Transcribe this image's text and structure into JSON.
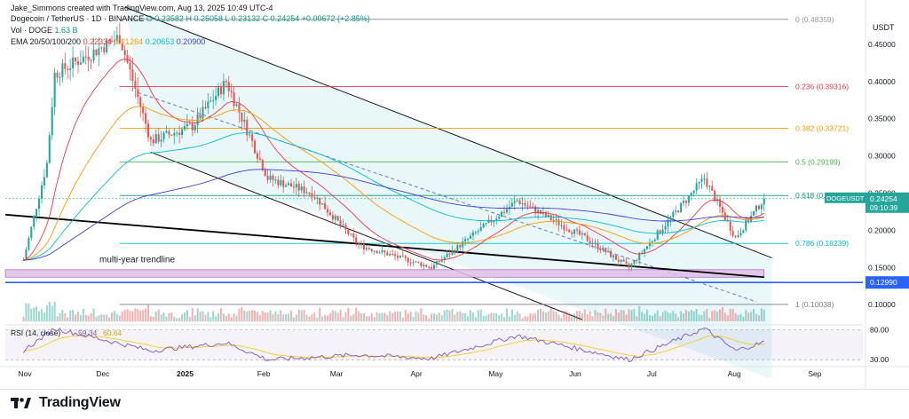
{
  "attribution": "Jake_Simmons created with TradingView.com, Aug 13, 2025 10:49 UTC-4",
  "legend": {
    "symbol": "Dogecoin / TetherUS · 1D · BINANCE",
    "ohlc": "O 0.23582  H 0.25058  L 0.23132  C 0.24254  +0.00672 (+2.85%)",
    "vol_label": "Vol · DOGE",
    "vol_value": "1.63 B",
    "ema_label": "EMA 20/50/100/200",
    "ema_values": [
      "0.22334",
      "0.21264",
      "0.20653",
      "0.20900"
    ]
  },
  "colors": {
    "up": "#26a69a",
    "down": "#ef5350",
    "ema20": "#f23645",
    "ema50": "#ff9800",
    "ema100": "#00bcd4",
    "ema200": "#3f3fd6",
    "channel_fill": "#e3f5f8",
    "support_zone": "#e1bee7",
    "support_line": "#2962ff",
    "rsi_line": "#7e57c2",
    "rsi_ma": "#f0d020"
  },
  "chart_data": {
    "type": "candlestick",
    "pair": "DOGE/USDT",
    "yaxis_unit": "USDT",
    "ylim": [
      0.08,
      0.5
    ],
    "yticks": [
      "0.45000",
      "0.40000",
      "0.35000",
      "0.30000",
      "0.25000",
      "0.20000",
      "0.15000",
      "0.10000"
    ],
    "xticks": [
      "Nov",
      "Dec",
      "2025",
      "Feb",
      "Mar",
      "Apr",
      "May",
      "Jun",
      "Jul",
      "Aug",
      "Sep"
    ],
    "current_price": {
      "symbol": "DOGEUSDT",
      "value": "0.24254",
      "countdown": "09:10:39"
    },
    "support_level": {
      "value": 0.1299,
      "label": "0.12990"
    },
    "fib_levels": [
      {
        "level": "0",
        "value": 0.48359,
        "label": "0 (0.48359)",
        "color": "#9598a1"
      },
      {
        "level": "0.236",
        "value": 0.39316,
        "label": "0.236 (0.39316)",
        "color": "#f23645"
      },
      {
        "level": "0.382",
        "value": 0.33721,
        "label": "0.382 (0.33721)",
        "color": "#ff9800"
      },
      {
        "level": "0.5",
        "value": 0.29199,
        "label": "0.5 (0.29199)",
        "color": "#4caf50"
      },
      {
        "level": "0.618",
        "value": 0.24677,
        "label": "0.618 (0.",
        "color": "#089981"
      },
      {
        "level": "0.786",
        "value": 0.18239,
        "label": "0.786 (0.18239)",
        "color": "#00bcd4"
      },
      {
        "level": "1",
        "value": 0.10038,
        "label": "1 (0.10038)",
        "color": "#787b86"
      }
    ],
    "annotations": [
      "multi-year trendline"
    ],
    "key_closes": [
      {
        "date": "2024-11-01",
        "price": 0.16
      },
      {
        "date": "2024-11-10",
        "price": 0.29
      },
      {
        "date": "2024-11-13",
        "price": 0.41
      },
      {
        "date": "2024-12-08",
        "price": 0.46
      },
      {
        "date": "2024-12-20",
        "price": 0.32
      },
      {
        "date": "2025-01-05",
        "price": 0.34
      },
      {
        "date": "2025-01-18",
        "price": 0.4
      },
      {
        "date": "2025-02-03",
        "price": 0.27
      },
      {
        "date": "2025-02-20",
        "price": 0.25
      },
      {
        "date": "2025-03-10",
        "price": 0.18
      },
      {
        "date": "2025-04-07",
        "price": 0.15
      },
      {
        "date": "2025-05-10",
        "price": 0.24
      },
      {
        "date": "2025-06-05",
        "price": 0.19
      },
      {
        "date": "2025-06-22",
        "price": 0.15
      },
      {
        "date": "2025-07-21",
        "price": 0.27
      },
      {
        "date": "2025-08-02",
        "price": 0.19
      },
      {
        "date": "2025-08-13",
        "price": 0.24254
      }
    ]
  },
  "rsi": {
    "label": "RSI (14, close)",
    "value": "59.34",
    "ma_value": "60.64",
    "levels": [
      "80.00",
      "30.00"
    ],
    "range": [
      20,
      85
    ],
    "key_values": [
      {
        "date": "2024-11-01",
        "rsi": 45
      },
      {
        "date": "2024-11-13",
        "rsi": 82
      },
      {
        "date": "2024-12-20",
        "rsi": 45
      },
      {
        "date": "2025-01-18",
        "rsi": 58
      },
      {
        "date": "2025-02-03",
        "rsi": 30
      },
      {
        "date": "2025-03-10",
        "rsi": 38
      },
      {
        "date": "2025-04-07",
        "rsi": 32
      },
      {
        "date": "2025-05-10",
        "rsi": 70
      },
      {
        "date": "2025-06-22",
        "rsi": 30
      },
      {
        "date": "2025-07-21",
        "rsi": 82
      },
      {
        "date": "2025-08-02",
        "rsi": 45
      },
      {
        "date": "2025-08-13",
        "rsi": 59.34
      }
    ]
  },
  "footer": {
    "brand": "TradingView"
  }
}
